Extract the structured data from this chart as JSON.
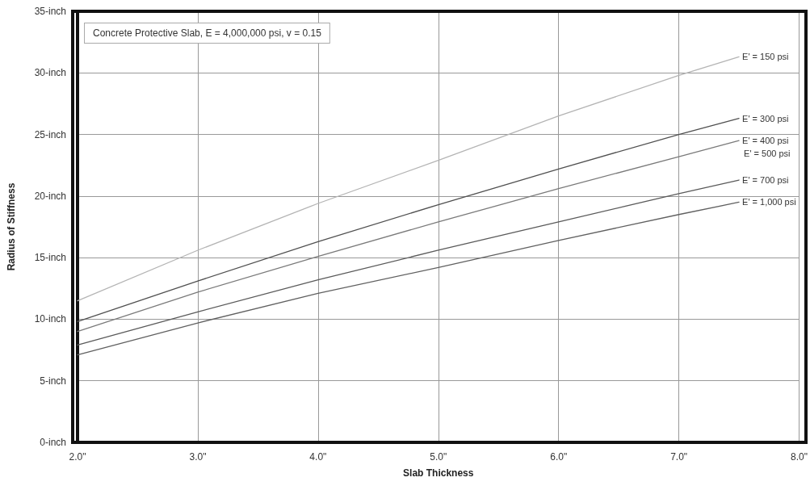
{
  "chart_data": {
    "type": "line",
    "title": "Concrete Protective Slab, E = 4,000,000 psi, v = 0.15",
    "xlabel": "Slab Thickness",
    "ylabel": "Radius of Stiffness",
    "x": [
      2,
      3,
      4,
      5,
      6,
      7,
      7.5
    ],
    "series": [
      {
        "name": "E' = 150 psi",
        "color": "#b4b4b4",
        "values": [
          11.5,
          15.6,
          19.4,
          22.9,
          26.5,
          29.8,
          31.3
        ]
      },
      {
        "name": "E' = 300 psi",
        "color": "#505050",
        "values": [
          9.8,
          13.1,
          16.3,
          19.3,
          22.2,
          25.0,
          26.3
        ]
      },
      {
        "name": "E' = 400 psi",
        "color": "#7a7a7a",
        "values": [
          9.0,
          12.2,
          15.1,
          17.9,
          20.6,
          23.2,
          24.5
        ]
      },
      {
        "name": "E' = 700 psi",
        "color": "#5a5a5a",
        "values": [
          7.9,
          10.6,
          13.2,
          15.6,
          17.9,
          20.2,
          21.3
        ]
      },
      {
        "name": "E' = 1,000 psi",
        "color": "#606060",
        "values": [
          7.1,
          9.7,
          12.1,
          14.2,
          16.4,
          18.5,
          19.5
        ]
      }
    ],
    "annotations": [
      "E' = 500 psi"
    ],
    "xlim": [
      2,
      8
    ],
    "xticks": [
      {
        "value": 2,
        "label": "2.0\""
      },
      {
        "value": 3,
        "label": "3.0\""
      },
      {
        "value": 4,
        "label": "4.0\""
      },
      {
        "value": 5,
        "label": "5.0\""
      },
      {
        "value": 6,
        "label": "6.0\""
      },
      {
        "value": 7,
        "label": "7.0\""
      },
      {
        "value": 8,
        "label": "8.0\""
      }
    ],
    "ylim": [
      0,
      35
    ],
    "yticks": [
      {
        "value": 0,
        "label": "0-inch"
      },
      {
        "value": 5,
        "label": "5-inch"
      },
      {
        "value": 10,
        "label": "10-inch"
      },
      {
        "value": 15,
        "label": "15-inch"
      },
      {
        "value": 20,
        "label": "20-inch"
      },
      {
        "value": 25,
        "label": "25-inch"
      },
      {
        "value": 30,
        "label": "30-inch"
      },
      {
        "value": 35,
        "label": "35-inch"
      }
    ],
    "grid": true,
    "legend": false,
    "marker": "none",
    "line_style": "solid"
  }
}
